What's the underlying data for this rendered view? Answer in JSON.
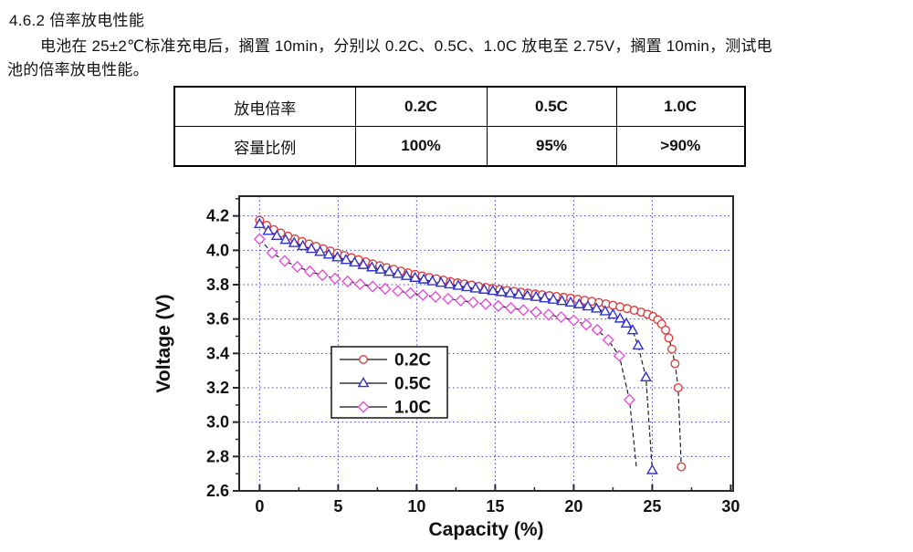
{
  "doc": {
    "section_heading": "4.6.2 倍率放电性能",
    "para_line1": "电池在 25±2℃标准充电后，搁置 10min，分别以 0.2C、0.5C、1.0C 放电至 2.75V，搁置 10min，测试电",
    "para_line2": "池的倍率放电性能。"
  },
  "rate_table": {
    "rows": [
      {
        "label": "放电倍率",
        "values": [
          "0.2C",
          "0.5C",
          "1.0C"
        ]
      },
      {
        "label": "容量比例",
        "values": [
          "100%",
          "95%",
          ">90%"
        ]
      }
    ]
  },
  "chart_data": {
    "type": "line",
    "title": "",
    "xlabel": "Capacity (%)",
    "ylabel": "Voltage (V)",
    "xlim": [
      -1.3,
      30.15
    ],
    "ylim": [
      2.6,
      4.315
    ],
    "xtick_values": [
      0,
      5,
      10,
      15,
      20,
      25,
      30
    ],
    "xtick_labels": [
      "0",
      "5",
      "10",
      "15",
      "20",
      "25",
      "30"
    ],
    "xtick_minor": [
      2.5,
      7.5,
      12.5,
      17.5,
      22.5,
      27.5
    ],
    "ytick_values": [
      2.6,
      2.8,
      3.0,
      3.2,
      3.4,
      3.6,
      3.8,
      4.0,
      4.2
    ],
    "ytick_labels": [
      "2.6",
      "2.8",
      "3.0",
      "3.2",
      "3.4",
      "3.6",
      "3.8",
      "4.0",
      "4.2"
    ],
    "ytick_minor": [
      2.7,
      2.9,
      3.1,
      3.3,
      3.5,
      3.7,
      3.9,
      4.1,
      4.3
    ],
    "grid": true,
    "grid_color": "#4040cc",
    "axis_color": "#2a2a2a",
    "line_color": "#111111",
    "legend_position": "inside-center-left",
    "series": [
      {
        "name": "0.2C",
        "marker": "circle",
        "color": "#d94040",
        "points": [
          [
            0.0,
            4.175
          ],
          [
            0.45,
            4.145
          ],
          [
            0.9,
            4.12
          ],
          [
            1.35,
            4.1
          ],
          [
            1.8,
            4.082
          ],
          [
            2.25,
            4.066
          ],
          [
            2.7,
            4.051
          ],
          [
            3.15,
            4.037
          ],
          [
            3.6,
            4.023
          ],
          [
            4.05,
            4.009
          ],
          [
            4.5,
            3.996
          ],
          [
            4.95,
            3.983
          ],
          [
            5.4,
            3.97
          ],
          [
            5.85,
            3.957
          ],
          [
            6.3,
            3.945
          ],
          [
            6.75,
            3.933
          ],
          [
            7.2,
            3.921
          ],
          [
            7.65,
            3.91
          ],
          [
            8.1,
            3.899
          ],
          [
            8.55,
            3.889
          ],
          [
            9.0,
            3.879
          ],
          [
            9.45,
            3.869
          ],
          [
            9.9,
            3.86
          ],
          [
            10.35,
            3.851
          ],
          [
            10.8,
            3.842
          ],
          [
            11.25,
            3.834
          ],
          [
            11.7,
            3.826
          ],
          [
            12.15,
            3.818
          ],
          [
            12.6,
            3.811
          ],
          [
            13.05,
            3.804
          ],
          [
            13.5,
            3.797
          ],
          [
            13.95,
            3.79
          ],
          [
            14.4,
            3.784
          ],
          [
            14.85,
            3.778
          ],
          [
            15.3,
            3.772
          ],
          [
            15.75,
            3.766
          ],
          [
            16.2,
            3.761
          ],
          [
            16.65,
            3.756
          ],
          [
            17.1,
            3.751
          ],
          [
            17.55,
            3.746
          ],
          [
            18.0,
            3.741
          ],
          [
            18.45,
            3.736
          ],
          [
            18.9,
            3.731
          ],
          [
            19.35,
            3.726
          ],
          [
            19.8,
            3.721
          ],
          [
            20.25,
            3.715
          ],
          [
            20.7,
            3.709
          ],
          [
            21.15,
            3.703
          ],
          [
            21.6,
            3.696
          ],
          [
            22.05,
            3.688
          ],
          [
            22.5,
            3.68
          ],
          [
            22.95,
            3.671
          ],
          [
            23.4,
            3.661
          ],
          [
            23.85,
            3.651
          ],
          [
            24.3,
            3.64
          ],
          [
            24.7,
            3.628
          ],
          [
            25.05,
            3.614
          ],
          [
            25.35,
            3.596
          ],
          [
            25.6,
            3.571
          ],
          [
            25.85,
            3.536
          ],
          [
            26.05,
            3.49
          ],
          [
            26.25,
            3.425
          ],
          [
            26.45,
            3.34
          ],
          [
            26.65,
            3.2
          ],
          [
            26.85,
            2.74
          ]
        ]
      },
      {
        "name": "0.5C",
        "marker": "triangle",
        "color": "#3333cc",
        "points": [
          [
            0.0,
            4.152
          ],
          [
            0.55,
            4.112
          ],
          [
            1.1,
            4.083
          ],
          [
            1.65,
            4.06
          ],
          [
            2.2,
            4.042
          ],
          [
            2.75,
            4.024
          ],
          [
            3.3,
            4.007
          ],
          [
            3.85,
            3.99
          ],
          [
            4.4,
            3.974
          ],
          [
            4.95,
            3.958
          ],
          [
            5.5,
            3.943
          ],
          [
            6.05,
            3.928
          ],
          [
            6.6,
            3.914
          ],
          [
            7.15,
            3.9
          ],
          [
            7.7,
            3.887
          ],
          [
            8.25,
            3.874
          ],
          [
            8.8,
            3.862
          ],
          [
            9.35,
            3.85
          ],
          [
            9.9,
            3.839
          ],
          [
            10.45,
            3.829
          ],
          [
            11.0,
            3.819
          ],
          [
            11.55,
            3.81
          ],
          [
            12.1,
            3.801
          ],
          [
            12.65,
            3.793
          ],
          [
            13.2,
            3.785
          ],
          [
            13.75,
            3.777
          ],
          [
            14.3,
            3.77
          ],
          [
            14.85,
            3.763
          ],
          [
            15.4,
            3.756
          ],
          [
            15.95,
            3.749
          ],
          [
            16.5,
            3.742
          ],
          [
            17.05,
            3.735
          ],
          [
            17.6,
            3.728
          ],
          [
            18.15,
            3.72
          ],
          [
            18.7,
            3.712
          ],
          [
            19.25,
            3.704
          ],
          [
            19.8,
            3.695
          ],
          [
            20.35,
            3.685
          ],
          [
            20.9,
            3.673
          ],
          [
            21.45,
            3.66
          ],
          [
            22.0,
            3.644
          ],
          [
            22.5,
            3.625
          ],
          [
            22.95,
            3.602
          ],
          [
            23.35,
            3.573
          ],
          [
            23.75,
            3.534
          ],
          [
            24.1,
            3.445
          ],
          [
            24.6,
            3.26
          ],
          [
            25.0,
            2.72
          ]
        ]
      },
      {
        "name": "1.0C",
        "marker": "diamond",
        "color": "#e650d8",
        "end_marker": false,
        "points": [
          [
            0.0,
            4.065
          ],
          [
            0.8,
            3.985
          ],
          [
            1.6,
            3.938
          ],
          [
            2.4,
            3.904
          ],
          [
            3.2,
            3.877
          ],
          [
            4.0,
            3.855
          ],
          [
            4.8,
            3.836
          ],
          [
            5.6,
            3.819
          ],
          [
            6.4,
            3.803
          ],
          [
            7.2,
            3.789
          ],
          [
            8.0,
            3.776
          ],
          [
            8.8,
            3.763
          ],
          [
            9.6,
            3.751
          ],
          [
            10.4,
            3.74
          ],
          [
            11.2,
            3.729
          ],
          [
            12.0,
            3.718
          ],
          [
            12.8,
            3.708
          ],
          [
            13.6,
            3.697
          ],
          [
            14.4,
            3.687
          ],
          [
            15.2,
            3.676
          ],
          [
            16.0,
            3.664
          ],
          [
            16.8,
            3.652
          ],
          [
            17.6,
            3.64
          ],
          [
            18.4,
            3.626
          ],
          [
            19.2,
            3.611
          ],
          [
            20.0,
            3.592
          ],
          [
            20.8,
            3.567
          ],
          [
            21.5,
            3.537
          ],
          [
            22.2,
            3.478
          ],
          [
            22.9,
            3.386
          ],
          [
            23.55,
            3.13
          ],
          [
            24.0,
            2.73
          ]
        ]
      }
    ]
  }
}
